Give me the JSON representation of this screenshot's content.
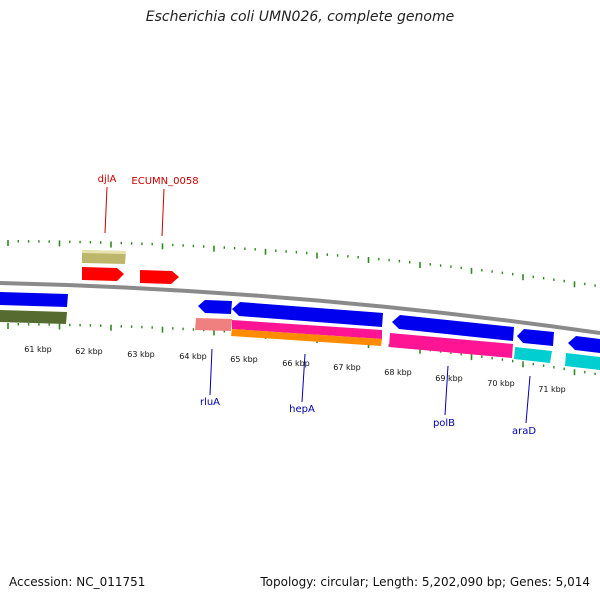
{
  "title": "Escherichia coli UMN026, complete genome",
  "footer": {
    "accession": "Accession: NC_011751",
    "topology": "Topology: circular; Length: 5,202,090 bp; Genes: 5,014"
  },
  "colors": {
    "backbone": "#8a8a8a",
    "tick": "#2e8b1e",
    "label_top": "#cc0000",
    "label_bottom": "#0000aa"
  },
  "kbp_labels": [
    "61 kbp",
    "62 kbp",
    "63 kbp",
    "64 kbp",
    "65 kbp",
    "66 kbp",
    "67 kbp",
    "68 kbp",
    "69 kbp",
    "70 kbp",
    "71 kbp"
  ],
  "gene_labels_top": [
    {
      "text": "djlA",
      "color": "#cc0000"
    },
    {
      "text": "ECUMN_0058",
      "color": "#cc0000"
    }
  ],
  "gene_labels_bottom": [
    {
      "text": "rluA",
      "color": "#0000aa"
    },
    {
      "text": "hepA",
      "color": "#0000aa"
    },
    {
      "text": "polB",
      "color": "#0000aa"
    },
    {
      "text": "araD",
      "color": "#0000aa"
    }
  ]
}
